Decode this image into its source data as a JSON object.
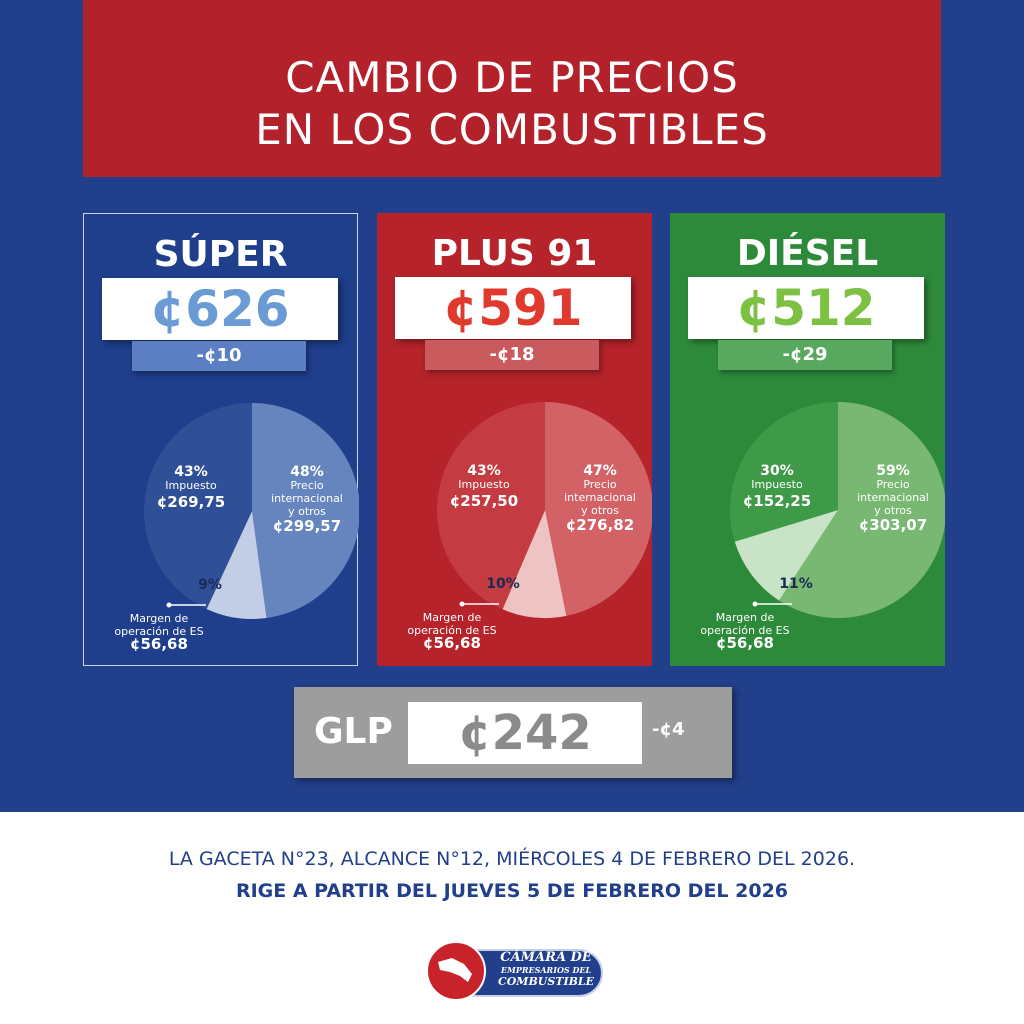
{
  "header": {
    "line1": "CAMBIO DE PRECIOS",
    "line2": "EN LOS COMBUSTIBLES"
  },
  "fuels": [
    {
      "name": "SÚPER",
      "price": "¢626",
      "change": "-¢10",
      "tax_pct": "43%",
      "tax_label": "Impuesto",
      "tax_amt": "¢269,75",
      "intl_pct": "48%",
      "intl_label1": "Precio",
      "intl_label2": "internacional",
      "intl_label3": "y otros",
      "intl_amt": "¢299,57",
      "margin_pct": "9%",
      "margin_label1": "Margen de",
      "margin_label2": "operación de ES",
      "margin_amt": "¢56,68",
      "colors": {
        "card": "#1f3e8b",
        "price": "#6b9bd4",
        "chg": "#5b7fc2",
        "intl": "#6685bf",
        "tax": "#2f4f97",
        "margin": "#c3cde6"
      }
    },
    {
      "name": "PLUS 91",
      "price": "¢591",
      "change": "-¢18",
      "tax_pct": "43%",
      "tax_label": "Impuesto",
      "tax_amt": "¢257,50",
      "intl_pct": "47%",
      "intl_label1": "Precio",
      "intl_label2": "internacional",
      "intl_label3": "y otros",
      "intl_amt": "¢276,82",
      "margin_pct": "10%",
      "margin_label1": "Margen de",
      "margin_label2": "operación de ES",
      "margin_amt": "¢56,68",
      "colors": {
        "card": "#b6232a",
        "price": "#e03a2e",
        "chg": "#c95a5e",
        "intl": "#d36266",
        "tax": "#c43c41",
        "margin": "#edc3c4"
      }
    },
    {
      "name": "DIÉSEL",
      "price": "¢512",
      "change": "-¢29",
      "tax_pct": "30%",
      "tax_label": "Impuesto",
      "tax_amt": "¢152,25",
      "intl_pct": "59%",
      "intl_label1": "Precio",
      "intl_label2": "internacional",
      "intl_label3": "y otros",
      "intl_amt": "¢303,07",
      "margin_pct": "11%",
      "margin_label1": "Margen de",
      "margin_label2": "operación de ES",
      "margin_amt": "¢56,68",
      "colors": {
        "card": "#2e8a3b",
        "price": "#7dc142",
        "chg": "#58a85f",
        "intl": "#78b872",
        "tax": "#3f9a48",
        "margin": "#c9e3c6"
      }
    }
  ],
  "glp": {
    "name": "GLP",
    "price": "¢242",
    "change": "-¢4"
  },
  "footer": {
    "line1": "LA GACETA N°23, ALCANCE N°12, MIÉRCOLES 4 DE FEBRERO DEL 2026.",
    "line2": "RIGE A PARTIR DEL JUEVES 5 DE FEBRERO DEL 2026"
  },
  "logo": {
    "line1": "CÁMARA DE",
    "line2": "EMPRESARIOS DEL",
    "line3": "COMBUSTIBLE"
  },
  "chart_data": [
    {
      "type": "pie",
      "title": "SÚPER",
      "categories": [
        "Precio internacional y otros",
        "Margen de operación de ES",
        "Impuesto"
      ],
      "values": [
        299.57,
        56.68,
        269.75
      ],
      "percent": [
        48,
        9,
        43
      ]
    },
    {
      "type": "pie",
      "title": "PLUS 91",
      "categories": [
        "Precio internacional y otros",
        "Margen de operación de ES",
        "Impuesto"
      ],
      "values": [
        276.82,
        56.68,
        257.5
      ],
      "percent": [
        47,
        10,
        43
      ]
    },
    {
      "type": "pie",
      "title": "DIÉSEL",
      "categories": [
        "Precio internacional y otros",
        "Margen de operación de ES",
        "Impuesto"
      ],
      "values": [
        303.07,
        56.68,
        152.25
      ],
      "percent": [
        59,
        11,
        30
      ]
    }
  ]
}
